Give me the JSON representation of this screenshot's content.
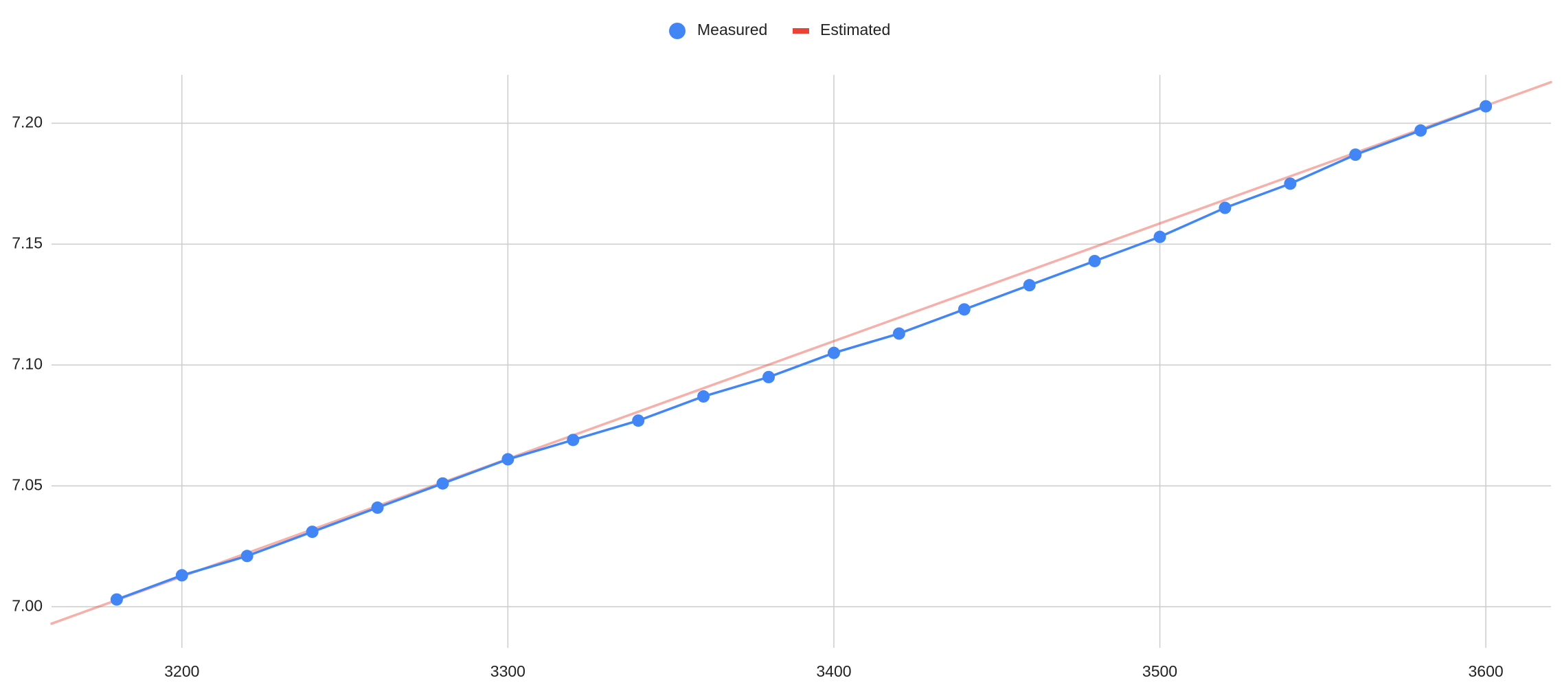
{
  "chart_data": {
    "type": "line",
    "series": [
      {
        "name": "Measured",
        "color": "#4285f4",
        "x": [
          3180,
          3200,
          3220,
          3240,
          3260,
          3280,
          3300,
          3320,
          3340,
          3360,
          3380,
          3400,
          3420,
          3440,
          3460,
          3480,
          3500,
          3520,
          3540,
          3560,
          3580,
          3600
        ],
        "values": [
          7.003,
          7.013,
          7.021,
          7.031,
          7.041,
          7.051,
          7.061,
          7.069,
          7.077,
          7.087,
          7.095,
          7.105,
          7.113,
          7.123,
          7.133,
          7.143,
          7.153,
          7.165,
          7.175,
          7.187,
          7.197,
          7.207
        ]
      },
      {
        "name": "Estimated",
        "color": "#ea4335",
        "x": [
          3160,
          3620
        ],
        "values": [
          6.993,
          7.217
        ]
      }
    ],
    "xlim": [
      3160,
      3620
    ],
    "xticks": [
      3200,
      3300,
      3400,
      3500,
      3600
    ],
    "ylim": [
      6.983,
      7.22
    ],
    "yticks": [
      {
        "value": 7,
        "label": "7.00"
      },
      7.05,
      {
        "value": 7.1,
        "label": "7.10"
      },
      7.15,
      {
        "value": 7.2,
        "label": "7.20"
      }
    ],
    "grid": true,
    "legend": "top"
  }
}
